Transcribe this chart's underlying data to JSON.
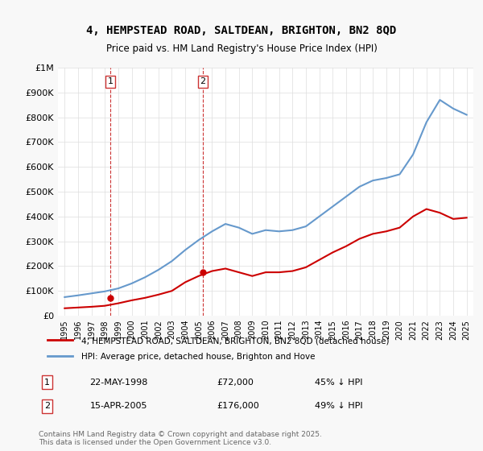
{
  "title": "4, HEMPSTEAD ROAD, SALTDEAN, BRIGHTON, BN2 8QD",
  "subtitle": "Price paid vs. HM Land Registry's House Price Index (HPI)",
  "legend_label_red": "4, HEMPSTEAD ROAD, SALTDEAN, BRIGHTON, BN2 8QD (detached house)",
  "legend_label_blue": "HPI: Average price, detached house, Brighton and Hove",
  "footnote": "Contains HM Land Registry data © Crown copyright and database right 2025.\nThis data is licensed under the Open Government Licence v3.0.",
  "transactions": [
    {
      "num": 1,
      "date": "22-MAY-1998",
      "price": "£72,000",
      "pct": "45% ↓ HPI",
      "year": 1998.4
    },
    {
      "num": 2,
      "date": "15-APR-2005",
      "price": "£176,000",
      "pct": "49% ↓ HPI",
      "year": 2005.3
    }
  ],
  "transaction_prices": [
    72000,
    176000
  ],
  "transaction_years": [
    1998.4,
    2005.3
  ],
  "hpi_years": [
    1995,
    1996,
    1997,
    1998,
    1999,
    2000,
    2001,
    2002,
    2003,
    2004,
    2005,
    2006,
    2007,
    2008,
    2009,
    2010,
    2011,
    2012,
    2013,
    2014,
    2015,
    2016,
    2017,
    2018,
    2019,
    2020,
    2021,
    2022,
    2023,
    2024,
    2025
  ],
  "hpi_values": [
    75000,
    82000,
    90000,
    98000,
    110000,
    130000,
    155000,
    185000,
    220000,
    265000,
    305000,
    340000,
    370000,
    355000,
    330000,
    345000,
    340000,
    345000,
    360000,
    400000,
    440000,
    480000,
    520000,
    545000,
    555000,
    570000,
    650000,
    780000,
    870000,
    835000,
    810000
  ],
  "price_years": [
    1995,
    1996,
    1997,
    1998,
    1999,
    2000,
    2001,
    2002,
    2003,
    2004,
    2005,
    2006,
    2007,
    2008,
    2009,
    2010,
    2011,
    2012,
    2013,
    2014,
    2015,
    2016,
    2017,
    2018,
    2019,
    2020,
    2021,
    2022,
    2023,
    2024,
    2025
  ],
  "price_values": [
    30000,
    33000,
    36000,
    40000,
    50000,
    62000,
    72000,
    85000,
    100000,
    135000,
    160000,
    180000,
    190000,
    175000,
    160000,
    175000,
    175000,
    180000,
    195000,
    225000,
    255000,
    280000,
    310000,
    330000,
    340000,
    355000,
    400000,
    430000,
    415000,
    390000,
    395000
  ],
  "ylim": [
    0,
    1000000
  ],
  "xlim": [
    1994.5,
    2025.5
  ],
  "bg_color": "#f8f8f8",
  "plot_bg_color": "#ffffff",
  "red_color": "#cc0000",
  "blue_color": "#6699cc",
  "grid_color": "#dddddd",
  "marker_box_color": "#cc3333"
}
